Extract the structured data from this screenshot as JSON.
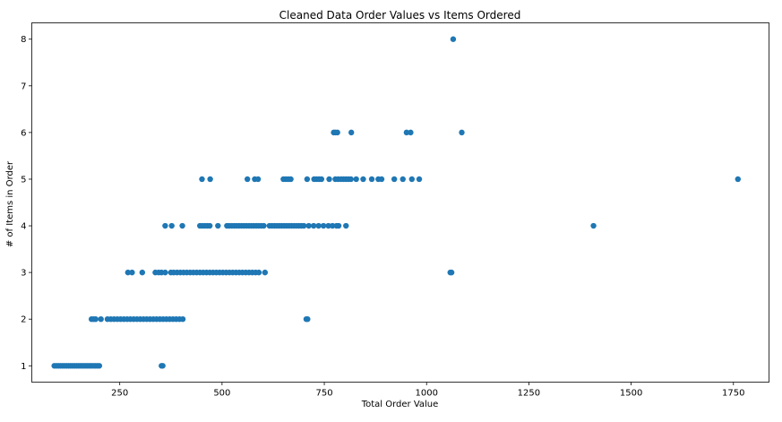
{
  "chart_data": {
    "type": "scatter",
    "title": "Cleaned Data Order Values vs Items Ordered",
    "xlabel": "Total Order Value",
    "ylabel": "# of Items in Order",
    "xlim": [
      35,
      1837
    ],
    "ylim": [
      0.65,
      8.35
    ],
    "x_ticks": [
      250,
      500,
      750,
      1000,
      1250,
      1500,
      1750
    ],
    "y_ticks": [
      1,
      2,
      3,
      4,
      5,
      6,
      7,
      8
    ],
    "grid": false,
    "legend": "none",
    "marker_color": "#1f77b4",
    "series": [
      {
        "points": [
          [
            90,
            1
          ],
          [
            95,
            1
          ],
          [
            100,
            1
          ],
          [
            105,
            1
          ],
          [
            110,
            1
          ],
          [
            115,
            1
          ],
          [
            120,
            1
          ],
          [
            125,
            1
          ],
          [
            130,
            1
          ],
          [
            135,
            1
          ],
          [
            140,
            1
          ],
          [
            145,
            1
          ],
          [
            150,
            1
          ],
          [
            155,
            1
          ],
          [
            160,
            1
          ],
          [
            165,
            1
          ],
          [
            170,
            1
          ],
          [
            175,
            1
          ],
          [
            180,
            1
          ],
          [
            185,
            1
          ],
          [
            190,
            1
          ],
          [
            195,
            1
          ],
          [
            200,
            1
          ],
          [
            352,
            1
          ],
          [
            355,
            1
          ],
          [
            181,
            2
          ],
          [
            186,
            2
          ],
          [
            191,
            2
          ],
          [
            204,
            2
          ],
          [
            220,
            2
          ],
          [
            228,
            2
          ],
          [
            236,
            2
          ],
          [
            244,
            2
          ],
          [
            252,
            2
          ],
          [
            260,
            2
          ],
          [
            268,
            2
          ],
          [
            276,
            2
          ],
          [
            284,
            2
          ],
          [
            292,
            2
          ],
          [
            300,
            2
          ],
          [
            308,
            2
          ],
          [
            316,
            2
          ],
          [
            324,
            2
          ],
          [
            332,
            2
          ],
          [
            340,
            2
          ],
          [
            348,
            2
          ],
          [
            356,
            2
          ],
          [
            364,
            2
          ],
          [
            372,
            2
          ],
          [
            380,
            2
          ],
          [
            388,
            2
          ],
          [
            396,
            2
          ],
          [
            404,
            2
          ],
          [
            706,
            2
          ],
          [
            709,
            2
          ],
          [
            270,
            3
          ],
          [
            280,
            3
          ],
          [
            305,
            3
          ],
          [
            337,
            3
          ],
          [
            345,
            3
          ],
          [
            352,
            3
          ],
          [
            361,
            3
          ],
          [
            375,
            3
          ],
          [
            382,
            3
          ],
          [
            390,
            3
          ],
          [
            398,
            3
          ],
          [
            406,
            3
          ],
          [
            414,
            3
          ],
          [
            422,
            3
          ],
          [
            430,
            3
          ],
          [
            438,
            3
          ],
          [
            446,
            3
          ],
          [
            454,
            3
          ],
          [
            462,
            3
          ],
          [
            470,
            3
          ],
          [
            478,
            3
          ],
          [
            486,
            3
          ],
          [
            494,
            3
          ],
          [
            502,
            3
          ],
          [
            510,
            3
          ],
          [
            518,
            3
          ],
          [
            526,
            3
          ],
          [
            534,
            3
          ],
          [
            542,
            3
          ],
          [
            550,
            3
          ],
          [
            558,
            3
          ],
          [
            566,
            3
          ],
          [
            574,
            3
          ],
          [
            582,
            3
          ],
          [
            590,
            3
          ],
          [
            605,
            3
          ],
          [
            1058,
            3
          ],
          [
            1061,
            3
          ],
          [
            361,
            4
          ],
          [
            377,
            4
          ],
          [
            403,
            4
          ],
          [
            446,
            4
          ],
          [
            452,
            4
          ],
          [
            458,
            4
          ],
          [
            464,
            4
          ],
          [
            470,
            4
          ],
          [
            490,
            4
          ],
          [
            512,
            4
          ],
          [
            518,
            4
          ],
          [
            524,
            4
          ],
          [
            530,
            4
          ],
          [
            536,
            4
          ],
          [
            542,
            4
          ],
          [
            548,
            4
          ],
          [
            554,
            4
          ],
          [
            560,
            4
          ],
          [
            566,
            4
          ],
          [
            572,
            4
          ],
          [
            578,
            4
          ],
          [
            584,
            4
          ],
          [
            590,
            4
          ],
          [
            596,
            4
          ],
          [
            602,
            4
          ],
          [
            616,
            4
          ],
          [
            622,
            4
          ],
          [
            628,
            4
          ],
          [
            634,
            4
          ],
          [
            640,
            4
          ],
          [
            646,
            4
          ],
          [
            652,
            4
          ],
          [
            658,
            4
          ],
          [
            664,
            4
          ],
          [
            670,
            4
          ],
          [
            676,
            4
          ],
          [
            682,
            4
          ],
          [
            688,
            4
          ],
          [
            694,
            4
          ],
          [
            700,
            4
          ],
          [
            712,
            4
          ],
          [
            724,
            4
          ],
          [
            736,
            4
          ],
          [
            748,
            4
          ],
          [
            760,
            4
          ],
          [
            770,
            4
          ],
          [
            780,
            4
          ],
          [
            785,
            4
          ],
          [
            803,
            4
          ],
          [
            1408,
            4
          ],
          [
            451,
            5
          ],
          [
            471,
            5
          ],
          [
            562,
            5
          ],
          [
            580,
            5
          ],
          [
            588,
            5
          ],
          [
            650,
            5
          ],
          [
            656,
            5
          ],
          [
            662,
            5
          ],
          [
            668,
            5
          ],
          [
            708,
            5
          ],
          [
            725,
            5
          ],
          [
            731,
            5
          ],
          [
            737,
            5
          ],
          [
            743,
            5
          ],
          [
            762,
            5
          ],
          [
            777,
            5
          ],
          [
            784,
            5
          ],
          [
            791,
            5
          ],
          [
            797,
            5
          ],
          [
            803,
            5
          ],
          [
            809,
            5
          ],
          [
            815,
            5
          ],
          [
            828,
            5
          ],
          [
            845,
            5
          ],
          [
            866,
            5
          ],
          [
            882,
            5
          ],
          [
            890,
            5
          ],
          [
            921,
            5
          ],
          [
            942,
            5
          ],
          [
            964,
            5
          ],
          [
            982,
            5
          ],
          [
            1761,
            5
          ],
          [
            773,
            6
          ],
          [
            777,
            6
          ],
          [
            782,
            6
          ],
          [
            816,
            6
          ],
          [
            951,
            6
          ],
          [
            961,
            6
          ],
          [
            1086,
            6
          ],
          [
            1065,
            8
          ]
        ]
      }
    ]
  }
}
